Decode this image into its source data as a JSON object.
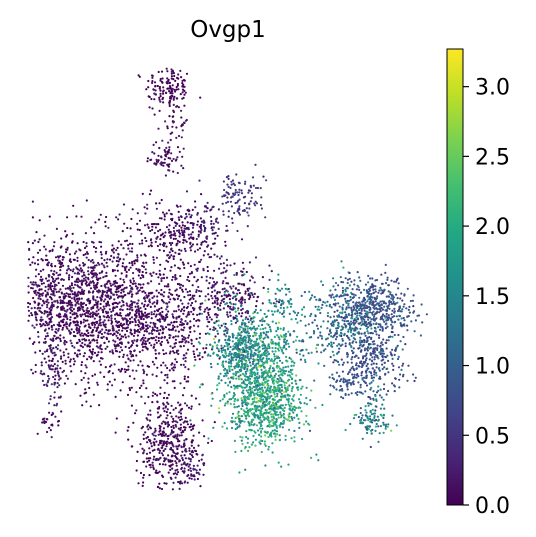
{
  "chart_data": {
    "type": "scatter",
    "title": "Ovgp1",
    "xlabel": "",
    "ylabel": "",
    "grid": false,
    "point_color_scale": "viridis",
    "colorbar": {
      "vmin": 0.0,
      "vmax": 3.27,
      "ticks": [
        0.0,
        0.5,
        1.0,
        1.5,
        2.0,
        2.5,
        3.0
      ],
      "tick_labels": [
        "0.0",
        "0.5",
        "1.0",
        "1.5",
        "2.0",
        "2.5",
        "3.0"
      ],
      "placement": "right"
    },
    "clusters": [
      {
        "x": 0.8,
        "y": 9.5,
        "sx": 0.35,
        "sy": 0.35,
        "n": 140,
        "value": 0.05
      },
      {
        "x": 1.0,
        "y": 8.5,
        "sx": 0.2,
        "sy": 0.2,
        "n": 30,
        "value": 0.1
      },
      {
        "x": 0.8,
        "y": 7.5,
        "sx": 0.3,
        "sy": 0.25,
        "n": 70,
        "value": 0.1
      },
      {
        "x": 2.9,
        "y": 6.3,
        "sx": 0.4,
        "sy": 0.35,
        "n": 110,
        "value": 0.5
      },
      {
        "x": 1.9,
        "y": 5.6,
        "sx": 0.35,
        "sy": 0.3,
        "n": 60,
        "value": 0.3
      },
      {
        "x": 1.0,
        "y": 5.2,
        "sx": 0.7,
        "sy": 0.55,
        "n": 260,
        "value": 0.05
      },
      {
        "x": 2.6,
        "y": 3.4,
        "sx": 0.65,
        "sy": 0.6,
        "n": 260,
        "value": 0.2
      },
      {
        "x": -2.2,
        "y": 3.2,
        "sx": 1.25,
        "sy": 1.0,
        "n": 1300,
        "value": 0.08
      },
      {
        "x": -0.4,
        "y": 3.0,
        "sx": 1.0,
        "sy": 1.0,
        "n": 600,
        "value": 0.06
      },
      {
        "x": 0.8,
        "y": 2.5,
        "sx": 0.7,
        "sy": 0.7,
        "n": 300,
        "value": 0.1
      },
      {
        "x": -2.7,
        "y": 0.9,
        "sx": 0.2,
        "sy": 0.45,
        "n": 60,
        "value": 0.3
      },
      {
        "x": -2.8,
        "y": -0.2,
        "sx": 0.15,
        "sy": 0.2,
        "n": 25,
        "value": 0.1
      },
      {
        "x": 0.8,
        "y": -0.8,
        "sx": 0.5,
        "sy": 0.75,
        "n": 420,
        "value": 0.05
      },
      {
        "x": 1.4,
        "y": -1.6,
        "sx": 0.25,
        "sy": 0.3,
        "n": 60,
        "value": 0.2
      },
      {
        "x": 3.0,
        "y": 1.9,
        "sx": 0.45,
        "sy": 0.45,
        "n": 300,
        "value": 1.4
      },
      {
        "x": 3.6,
        "y": 1.2,
        "sx": 0.65,
        "sy": 0.9,
        "n": 850,
        "value": 1.8
      },
      {
        "x": 3.8,
        "y": 0.2,
        "sx": 0.55,
        "sy": 0.6,
        "n": 420,
        "value": 2.0
      },
      {
        "x": 4.2,
        "y": 3.3,
        "sx": 0.2,
        "sy": 0.25,
        "n": 40,
        "value": 1.5
      },
      {
        "x": 6.3,
        "y": 2.6,
        "sx": 0.8,
        "sy": 0.6,
        "n": 420,
        "value": 1.2
      },
      {
        "x": 7.1,
        "y": 3.1,
        "sx": 0.6,
        "sy": 0.45,
        "n": 380,
        "value": 0.8
      },
      {
        "x": 7.0,
        "y": 1.6,
        "sx": 0.5,
        "sy": 0.45,
        "n": 220,
        "value": 0.7
      },
      {
        "x": 6.2,
        "y": 0.9,
        "sx": 0.3,
        "sy": 0.25,
        "n": 60,
        "value": 0.9
      },
      {
        "x": 7.1,
        "y": 0.4,
        "sx": 0.25,
        "sy": 0.5,
        "n": 60,
        "value": 1.2
      },
      {
        "x": 6.9,
        "y": -0.2,
        "sx": 0.35,
        "sy": 0.2,
        "n": 70,
        "value": 1.6
      }
    ],
    "xlim": [
      -3.4,
      8.6
    ],
    "ylim": [
      -2.1,
      10.2
    ]
  }
}
